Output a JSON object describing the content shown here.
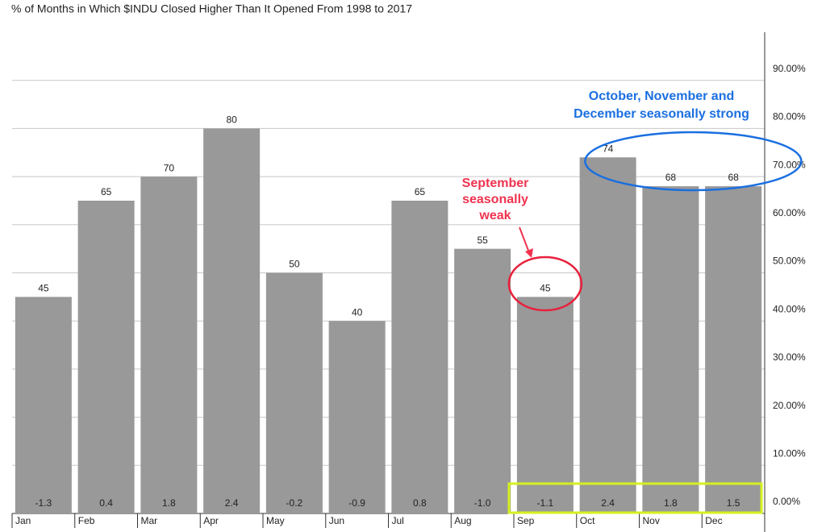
{
  "chart_data": {
    "type": "bar",
    "title": "% of Months in Which $INDU Closed Higher Than It Opened From 1998 to 2017",
    "categories": [
      "Jan",
      "Feb",
      "Mar",
      "Apr",
      "May",
      "Jun",
      "Jul",
      "Aug",
      "Sep",
      "Oct",
      "Nov",
      "Dec"
    ],
    "values": [
      45,
      65,
      70,
      80,
      50,
      40,
      65,
      55,
      45,
      74,
      68,
      68
    ],
    "color": "#999999",
    "bottom_labels": [
      "-1.3",
      "0.4",
      "1.8",
      "2.4",
      "-0.2",
      "-0.9",
      "0.8",
      "-1.0",
      "-1.1",
      "2.4",
      "1.8",
      "1.5"
    ],
    "ylim": [
      0,
      100
    ],
    "yticks": [
      {
        "value": 0,
        "label": "0.00%"
      },
      {
        "value": 10,
        "label": "10.00%"
      },
      {
        "value": 20,
        "label": "20.00%"
      },
      {
        "value": 30,
        "label": "30.00%"
      },
      {
        "value": 40,
        "label": "40.00%"
      },
      {
        "value": 50,
        "label": "50.00%"
      },
      {
        "value": 60,
        "label": "60.00%"
      },
      {
        "value": 70,
        "label": "70.00%"
      },
      {
        "value": 80,
        "label": "80.00%"
      },
      {
        "value": 90,
        "label": "90.00%"
      }
    ],
    "grid": true,
    "annotations": {
      "weak": [
        "September",
        "seasonally",
        "weak"
      ],
      "strong": [
        "October, November and",
        "December seasonally strong"
      ]
    }
  }
}
